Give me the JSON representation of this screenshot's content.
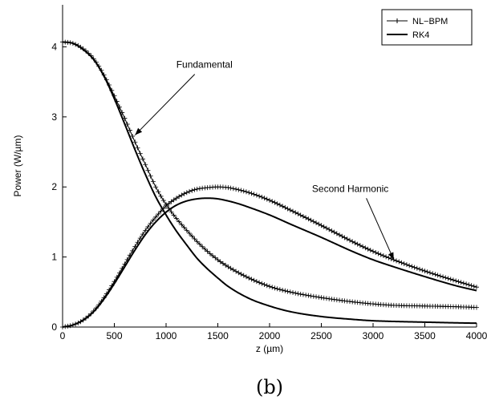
{
  "chart_data": {
    "type": "line",
    "title": "",
    "xlabel": "z (µm)",
    "ylabel": "Power (W/µm)",
    "caption": "(b)",
    "xlim": [
      0,
      4000
    ],
    "ylim": [
      0,
      4.6
    ],
    "xticks": [
      0,
      500,
      1000,
      1500,
      2000,
      2500,
      3000,
      3500,
      4000
    ],
    "yticks": [
      0,
      1,
      2,
      3,
      4
    ],
    "grid": false,
    "legend_position": "top-right",
    "legend": [
      {
        "label": "NL−BPM",
        "style": "plus-markers"
      },
      {
        "label": "RK4",
        "style": "solid"
      }
    ],
    "series": [
      {
        "name": "NL−BPM",
        "group": "Fundamental",
        "x": [
          0,
          100,
          200,
          300,
          400,
          500,
          600,
          700,
          800,
          900,
          1000,
          1100,
          1200,
          1300,
          1400,
          1500,
          1600,
          1800,
          2000,
          2200,
          2500,
          2800,
          3000,
          3200,
          3500,
          3800,
          4000
        ],
        "y": [
          4.07,
          4.05,
          3.97,
          3.83,
          3.6,
          3.3,
          2.98,
          2.64,
          2.32,
          2.0,
          1.75,
          1.55,
          1.38,
          1.22,
          1.08,
          0.96,
          0.86,
          0.7,
          0.58,
          0.5,
          0.42,
          0.36,
          0.33,
          0.31,
          0.3,
          0.29,
          0.28
        ]
      },
      {
        "name": "RK4",
        "group": "Fundamental",
        "x": [
          0,
          100,
          200,
          300,
          400,
          500,
          600,
          700,
          800,
          900,
          1000,
          1100,
          1200,
          1300,
          1400,
          1500,
          1600,
          1800,
          2000,
          2200,
          2500,
          2800,
          3000,
          3200,
          3500,
          3800,
          4000
        ],
        "y": [
          4.07,
          4.05,
          3.96,
          3.82,
          3.58,
          3.26,
          2.9,
          2.53,
          2.18,
          1.86,
          1.6,
          1.37,
          1.17,
          0.98,
          0.83,
          0.7,
          0.58,
          0.41,
          0.3,
          0.22,
          0.15,
          0.11,
          0.09,
          0.08,
          0.07,
          0.06,
          0.055
        ]
      },
      {
        "name": "NL−BPM",
        "group": "Second Harmonic",
        "x": [
          0,
          100,
          200,
          300,
          400,
          500,
          600,
          700,
          800,
          900,
          1000,
          1100,
          1200,
          1300,
          1400,
          1500,
          1600,
          1700,
          1800,
          2000,
          2200,
          2500,
          2800,
          3000,
          3200,
          3500,
          3800,
          4000
        ],
        "y": [
          0.0,
          0.03,
          0.1,
          0.23,
          0.42,
          0.65,
          0.9,
          1.15,
          1.38,
          1.57,
          1.73,
          1.84,
          1.92,
          1.97,
          1.99,
          2.0,
          1.99,
          1.96,
          1.92,
          1.81,
          1.67,
          1.45,
          1.22,
          1.08,
          0.96,
          0.8,
          0.66,
          0.57
        ]
      },
      {
        "name": "RK4",
        "group": "Second Harmonic",
        "x": [
          0,
          100,
          200,
          300,
          400,
          500,
          600,
          700,
          800,
          900,
          1000,
          1100,
          1200,
          1300,
          1400,
          1500,
          1600,
          1700,
          1800,
          2000,
          2200,
          2500,
          2800,
          3000,
          3200,
          3500,
          3800,
          4000
        ],
        "y": [
          0.0,
          0.03,
          0.1,
          0.22,
          0.4,
          0.62,
          0.86,
          1.1,
          1.32,
          1.5,
          1.64,
          1.74,
          1.8,
          1.83,
          1.84,
          1.83,
          1.8,
          1.76,
          1.71,
          1.6,
          1.47,
          1.28,
          1.08,
          0.96,
          0.86,
          0.72,
          0.59,
          0.52
        ]
      }
    ],
    "annotations": [
      {
        "text": "Fundamental",
        "x_data": 1370,
        "y_data": 3.7,
        "arrow_to": [
          700,
          2.74
        ]
      },
      {
        "text": "Second Harmonic",
        "x_data": 2780,
        "y_data": 1.93,
        "arrow_to": [
          3200,
          0.96
        ]
      }
    ]
  }
}
